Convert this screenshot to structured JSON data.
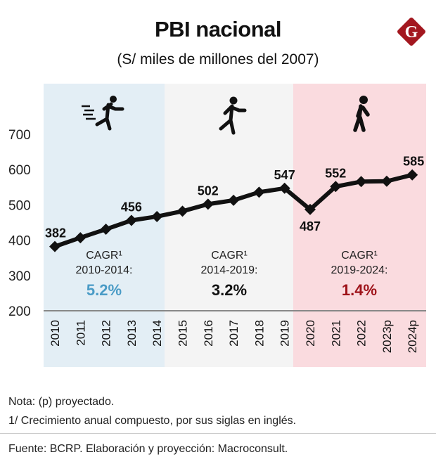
{
  "header": {
    "title": "PBI nacional",
    "subtitle": "(S/ miles de millones del 2007)",
    "logo_letter": "G",
    "logo_icon": "brand-g-diamond-icon",
    "logo_color": "#a3171f"
  },
  "chart_data": {
    "type": "line",
    "title": "PBI nacional",
    "subtitle": "(S/ miles de millones del 2007)",
    "xlabel": "",
    "ylabel": "",
    "ylim": [
      200,
      700
    ],
    "yticks": [
      200,
      300,
      400,
      500,
      600,
      700
    ],
    "grid": false,
    "categories": [
      "2010",
      "2011",
      "2012",
      "2013",
      "2014",
      "2015",
      "2016",
      "2017",
      "2018",
      "2019",
      "2020",
      "2021",
      "2022",
      "2023p",
      "2024p"
    ],
    "series": [
      {
        "name": "PBI",
        "color": "#111111",
        "values": [
          382,
          407,
          431,
          456,
          467,
          482,
          502,
          513,
          536,
          547,
          487,
          552,
          566,
          567,
          585
        ]
      }
    ],
    "data_labels": [
      {
        "category": "2010",
        "text": "382",
        "position": "above"
      },
      {
        "category": "2013",
        "text": "456",
        "position": "above"
      },
      {
        "category": "2016",
        "text": "502",
        "position": "above"
      },
      {
        "category": "2019",
        "text": "547",
        "position": "above"
      },
      {
        "category": "2020",
        "text": "487",
        "position": "below"
      },
      {
        "category": "2021",
        "text": "552",
        "position": "above"
      },
      {
        "category": "2024p",
        "text": "585",
        "position": "above"
      }
    ],
    "periods": [
      {
        "from": "2010",
        "to": "2014",
        "background": "#e3eef5",
        "icon": "sprinting-person-icon",
        "cagr_label": "CAGR¹",
        "cagr_range": "2010-2014:",
        "cagr_value": "5.2%",
        "cagr_color": "#4a9bc6"
      },
      {
        "from": "2015",
        "to": "2019",
        "background": "#f4f4f4",
        "icon": "running-person-icon",
        "cagr_label": "CAGR¹",
        "cagr_range": "2014-2019:",
        "cagr_value": "3.2%",
        "cagr_color": "#111111"
      },
      {
        "from": "2020",
        "to": "2024p",
        "background": "#fadbdf",
        "icon": "walking-person-icon",
        "cagr_label": "CAGR¹",
        "cagr_range": "2019-2024:",
        "cagr_value": "1.4%",
        "cagr_color": "#9e1219"
      }
    ]
  },
  "footer": {
    "notes": [
      "Nota: (p) proyectado.",
      "1/ Crecimiento anual compuesto, por sus siglas en inglés."
    ],
    "source": "Fuente: BCRP. Elaboración y proyección: Macroconsult."
  }
}
